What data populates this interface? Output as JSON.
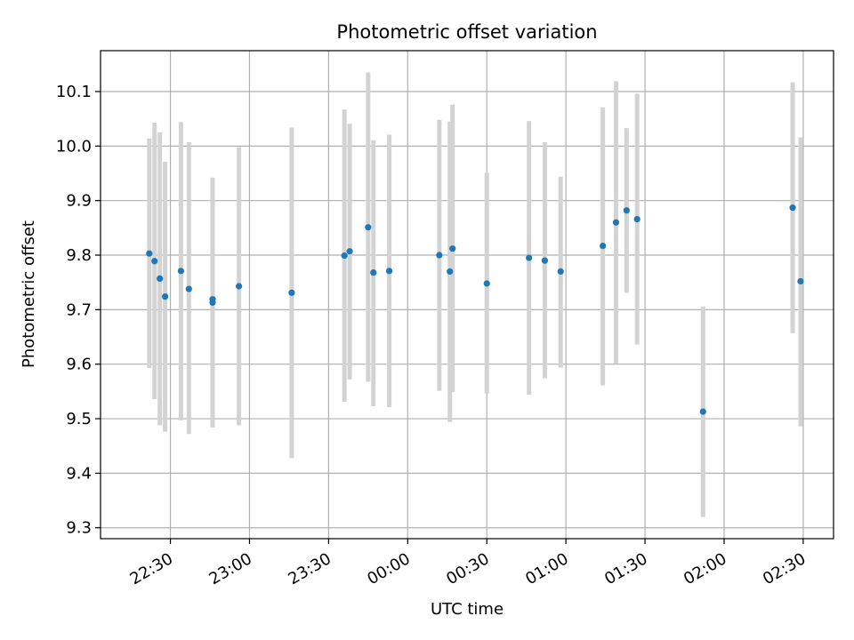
{
  "chart_data": {
    "type": "scatter",
    "title": "Photometric offset variation",
    "xlabel": "UTC time",
    "ylabel": "Photometric offset",
    "x_tick_labels": [
      "22:30",
      "23:00",
      "23:30",
      "00:00",
      "00:30",
      "01:00",
      "01:30",
      "02:00",
      "02:30"
    ],
    "x_tick_minutes": [
      1350,
      1380,
      1410,
      1440,
      1470,
      1500,
      1530,
      1560,
      1590
    ],
    "xlim_minutes": [
      1323.5,
      1601.5
    ],
    "y_ticks": [
      9.3,
      9.4,
      9.5,
      9.6,
      9.7,
      9.8,
      9.9,
      10.0,
      10.1
    ],
    "ylim": [
      9.28,
      10.175
    ],
    "grid": true,
    "errorbar_color": "#d3d3d3",
    "point_color": "#1f77b4",
    "points": [
      {
        "t": "22:22",
        "y": 9.803,
        "lo": 9.593,
        "hi": 10.014
      },
      {
        "t": "22:24",
        "y": 9.789,
        "lo": 9.536,
        "hi": 10.043
      },
      {
        "t": "22:26",
        "y": 9.757,
        "lo": 9.488,
        "hi": 10.025
      },
      {
        "t": "22:28",
        "y": 9.724,
        "lo": 9.476,
        "hi": 9.971
      },
      {
        "t": "22:34",
        "y": 9.771,
        "lo": 9.497,
        "hi": 10.044
      },
      {
        "t": "22:37",
        "y": 9.738,
        "lo": 9.472,
        "hi": 10.007
      },
      {
        "t": "22:46",
        "y": 9.719,
        "lo": 9.484,
        "hi": 9.942
      },
      {
        "t": "22:46",
        "y": 9.713,
        "lo": 9.484,
        "hi": 9.942
      },
      {
        "t": "22:56",
        "y": 9.743,
        "lo": 9.488,
        "hi": 9.998
      },
      {
        "t": "23:16",
        "y": 9.731,
        "lo": 9.428,
        "hi": 10.034
      },
      {
        "t": "23:36",
        "y": 9.799,
        "lo": 9.531,
        "hi": 10.067
      },
      {
        "t": "23:38",
        "y": 9.807,
        "lo": 9.572,
        "hi": 10.041
      },
      {
        "t": "23:45",
        "y": 9.851,
        "lo": 9.568,
        "hi": 10.135
      },
      {
        "t": "23:47",
        "y": 9.768,
        "lo": 9.523,
        "hi": 10.011
      },
      {
        "t": "23:53",
        "y": 9.771,
        "lo": 9.521,
        "hi": 10.021
      },
      {
        "t": "00:12",
        "y": 9.8,
        "lo": 9.551,
        "hi": 10.048
      },
      {
        "t": "00:16",
        "y": 9.77,
        "lo": 9.494,
        "hi": 10.045
      },
      {
        "t": "00:17",
        "y": 9.812,
        "lo": 9.549,
        "hi": 10.076
      },
      {
        "t": "00:30",
        "y": 9.748,
        "lo": 9.546,
        "hi": 9.951
      },
      {
        "t": "00:46",
        "y": 9.795,
        "lo": 9.544,
        "hi": 10.046
      },
      {
        "t": "00:52",
        "y": 9.79,
        "lo": 9.574,
        "hi": 10.007
      },
      {
        "t": "00:58",
        "y": 9.77,
        "lo": 9.594,
        "hi": 9.944
      },
      {
        "t": "01:14",
        "y": 9.817,
        "lo": 9.561,
        "hi": 10.071
      },
      {
        "t": "01:19",
        "y": 9.86,
        "lo": 9.601,
        "hi": 10.119
      },
      {
        "t": "01:23",
        "y": 9.882,
        "lo": 9.731,
        "hi": 10.033
      },
      {
        "t": "01:27",
        "y": 9.866,
        "lo": 9.636,
        "hi": 10.096
      },
      {
        "t": "01:52",
        "y": 9.513,
        "lo": 9.32,
        "hi": 9.706
      },
      {
        "t": "02:26",
        "y": 9.887,
        "lo": 9.657,
        "hi": 10.117
      },
      {
        "t": "02:29",
        "y": 9.752,
        "lo": 9.486,
        "hi": 10.016
      }
    ]
  }
}
